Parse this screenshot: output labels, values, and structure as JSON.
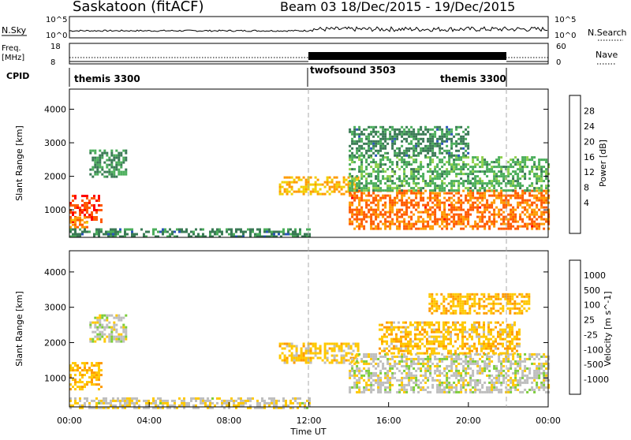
{
  "header": {
    "site": "Saskatoon (fitACF)",
    "beam_date": "Beam 03  18/Dec/2015 - 19/Dec/2015"
  },
  "top_panels": {
    "nsky_label": "N.Sky",
    "nsky_ticks": [
      "10^5",
      "10^0"
    ],
    "nsearch_label": "N.Search",
    "nsearch_ticks": [
      "10^5",
      "10^0"
    ],
    "freq_label_1": "Freq.",
    "freq_label_2": "[MHz]",
    "freq_ticks": [
      "18",
      "8"
    ],
    "nave_label": "Nave",
    "nave_ticks": [
      "60",
      "0"
    ],
    "cpid_label": "CPID",
    "cpid_segments": [
      {
        "label": "themis 3300",
        "start": "00:00",
        "end": "12:00"
      },
      {
        "label": "twofsound 3503",
        "start": "12:00",
        "end": "22:00"
      },
      {
        "label": "themis 3300",
        "start": "22:00",
        "end": "00:00"
      }
    ]
  },
  "power_colorbar": {
    "label": "Power [dB]",
    "ticks": [
      "28",
      "24",
      "20",
      "16",
      "12",
      "8",
      "4"
    ],
    "colors": [
      "#ff0000",
      "#ff5a00",
      "#ff9b00",
      "#f0d000",
      "#8ed04b",
      "#4bae5b",
      "#3a7a55",
      "#2b55b8",
      "#0000ff"
    ]
  },
  "velocity_colorbar": {
    "label": "Velocity [m s^-1]",
    "ticks": [
      "1000",
      "500",
      "100",
      "25",
      "-25",
      "-100",
      "-500",
      "-1000"
    ],
    "colors": [
      "#2044b0",
      "#2e6e8a",
      "#3e9f47",
      "#7ccd3a",
      "#bebebe",
      "#ffc800",
      "#ff9a00",
      "#ff5a00",
      "#ff0000"
    ]
  },
  "chart_data": [
    {
      "type": "heatmap",
      "title": "Power",
      "xlabel": "",
      "ylabel": "Slant Range [km]",
      "xlim": [
        "00:00",
        "00:00"
      ],
      "ylim": [
        180,
        4600
      ],
      "y_ticks": [
        "1000",
        "2000",
        "3000",
        "4000"
      ],
      "x_ticks": [
        "00:00",
        "04:00",
        "08:00",
        "12:00",
        "16:00",
        "20:00",
        "00:00"
      ],
      "value_unit": "dB",
      "value_range": [
        0,
        30
      ],
      "regions": [
        {
          "t_start_h": 0.0,
          "t_end_h": 1.6,
          "r_start_km": 650,
          "r_end_km": 1450,
          "value_db": 26
        },
        {
          "t_start_h": 0.0,
          "t_end_h": 0.9,
          "r_start_km": 500,
          "r_end_km": 800,
          "value_db": 22
        },
        {
          "t_start_h": 1.0,
          "t_end_h": 2.8,
          "r_start_km": 2000,
          "r_end_km": 2800,
          "value_db": 10
        },
        {
          "t_start_h": 0.0,
          "t_end_h": 12.0,
          "r_start_km": 180,
          "r_end_km": 450,
          "value_db": 9
        },
        {
          "t_start_h": 10.5,
          "t_end_h": 14.5,
          "r_start_km": 1450,
          "r_end_km": 2000,
          "value_db": 20
        },
        {
          "t_start_h": 14.0,
          "t_end_h": 24.0,
          "r_start_km": 450,
          "r_end_km": 1600,
          "value_db": 24
        },
        {
          "t_start_h": 14.0,
          "t_end_h": 24.0,
          "r_start_km": 1600,
          "r_end_km": 2600,
          "value_db": 12
        },
        {
          "t_start_h": 14.0,
          "t_end_h": 20.0,
          "r_start_km": 2600,
          "r_end_km": 3500,
          "value_db": 9
        }
      ]
    },
    {
      "type": "heatmap",
      "title": "Velocity",
      "xlabel": "Time UT",
      "ylabel": "Slant Range [km]",
      "xlim": [
        "00:00",
        "00:00"
      ],
      "ylim": [
        180,
        4600
      ],
      "y_ticks": [
        "1000",
        "2000",
        "3000",
        "4000"
      ],
      "x_ticks": [
        "00:00",
        "04:00",
        "08:00",
        "12:00",
        "16:00",
        "20:00",
        "00:00"
      ],
      "value_unit": "m s^-1",
      "value_range": [
        -1000,
        1000
      ],
      "regions": [
        {
          "t_start_h": 0.0,
          "t_end_h": 1.6,
          "r_start_km": 650,
          "r_end_km": 1450,
          "value_ms": -300
        },
        {
          "t_start_h": 1.0,
          "t_end_h": 2.8,
          "r_start_km": 2000,
          "r_end_km": 2800,
          "value_ms": 0
        },
        {
          "t_start_h": 0.0,
          "t_end_h": 12.0,
          "r_start_km": 180,
          "r_end_km": 450,
          "value_ms": -60
        },
        {
          "t_start_h": 10.5,
          "t_end_h": 14.5,
          "r_start_km": 1450,
          "r_end_km": 2000,
          "value_ms": -200
        },
        {
          "t_start_h": 14.0,
          "t_end_h": 24.0,
          "r_start_km": 600,
          "r_end_km": 1700,
          "value_ms": 0
        },
        {
          "t_start_h": 15.5,
          "t_end_h": 22.5,
          "r_start_km": 1700,
          "r_end_km": 2600,
          "value_ms": -250
        },
        {
          "t_start_h": 18.0,
          "t_end_h": 23.0,
          "r_start_km": 2800,
          "r_end_km": 3400,
          "value_ms": -300
        }
      ]
    }
  ]
}
